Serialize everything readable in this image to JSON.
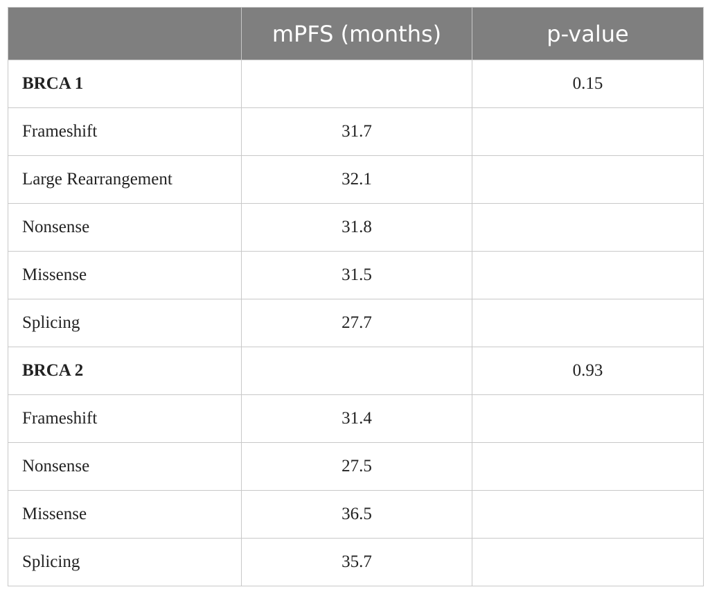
{
  "table": {
    "headers": [
      "",
      "mPFS (months)",
      "p-value"
    ],
    "rows": [
      {
        "label": "BRCA 1",
        "mpfs": "",
        "pvalue": "0.15",
        "group": true
      },
      {
        "label": "Frameshift",
        "mpfs": "31.7",
        "pvalue": "",
        "group": false
      },
      {
        "label": "Large Rearrangement",
        "mpfs": "32.1",
        "pvalue": "",
        "group": false
      },
      {
        "label": "Nonsense",
        "mpfs": "31.8",
        "pvalue": "",
        "group": false
      },
      {
        "label": "Missense",
        "mpfs": "31.5",
        "pvalue": "",
        "group": false
      },
      {
        "label": "Splicing",
        "mpfs": "27.7",
        "pvalue": "",
        "group": false
      },
      {
        "label": "BRCA 2",
        "mpfs": "",
        "pvalue": "0.93",
        "group": true
      },
      {
        "label": "Frameshift",
        "mpfs": "31.4",
        "pvalue": "",
        "group": false
      },
      {
        "label": "Nonsense",
        "mpfs": "27.5",
        "pvalue": "",
        "group": false
      },
      {
        "label": "Missense",
        "mpfs": "36.5",
        "pvalue": "",
        "group": false
      },
      {
        "label": "Splicing",
        "mpfs": "35.7",
        "pvalue": "",
        "group": false
      }
    ]
  },
  "colors": {
    "header_bg": "#7f7f7f",
    "header_text": "#ffffff",
    "border": "#c8c8c8"
  }
}
